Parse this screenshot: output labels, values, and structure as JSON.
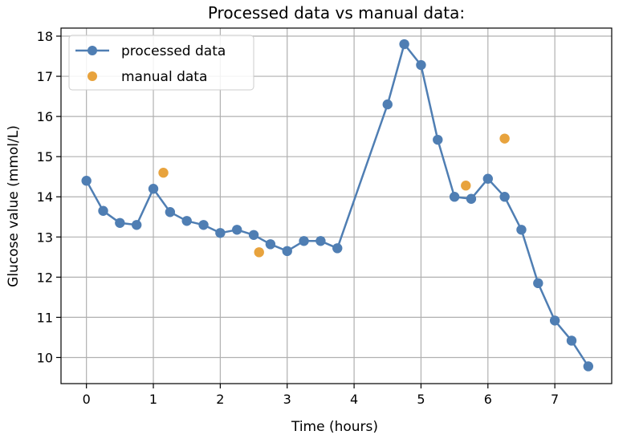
{
  "chart_data": {
    "type": "line",
    "title": "Processed data vs manual data:",
    "xlabel": "Time (hours)",
    "ylabel": "Glucose value (mmol/L)",
    "xlim": [
      -0.38,
      7.85
    ],
    "ylim": [
      9.35,
      18.2
    ],
    "xticks": [
      0,
      1,
      2,
      3,
      4,
      5,
      6,
      7
    ],
    "yticks": [
      10,
      11,
      12,
      13,
      14,
      15,
      16,
      17,
      18
    ],
    "grid": true,
    "legend_position": "top-left",
    "series": [
      {
        "name": "processed data",
        "kind": "line-marker",
        "color": "#4f7eb3",
        "x": [
          0,
          0.25,
          0.5,
          0.75,
          1.0,
          1.25,
          1.5,
          1.75,
          2.0,
          2.25,
          2.5,
          2.75,
          3.0,
          3.25,
          3.5,
          3.75,
          4.5,
          4.75,
          5.0,
          5.25,
          5.5,
          5.75,
          6.0,
          6.25,
          6.5,
          6.75,
          7.0,
          7.25,
          7.5
        ],
        "y": [
          14.4,
          13.65,
          13.35,
          13.3,
          14.2,
          13.62,
          13.4,
          13.3,
          13.1,
          13.18,
          13.05,
          12.82,
          12.65,
          12.9,
          12.9,
          12.72,
          16.3,
          17.8,
          17.28,
          15.42,
          14.0,
          13.95,
          14.45,
          14.0,
          13.18,
          11.85,
          10.92,
          10.42,
          9.78
        ]
      },
      {
        "name": "manual data",
        "kind": "scatter",
        "color": "#e8a33d",
        "x": [
          1.15,
          2.58,
          5.67,
          6.25
        ],
        "y": [
          14.6,
          12.62,
          14.28,
          15.45
        ]
      }
    ]
  }
}
